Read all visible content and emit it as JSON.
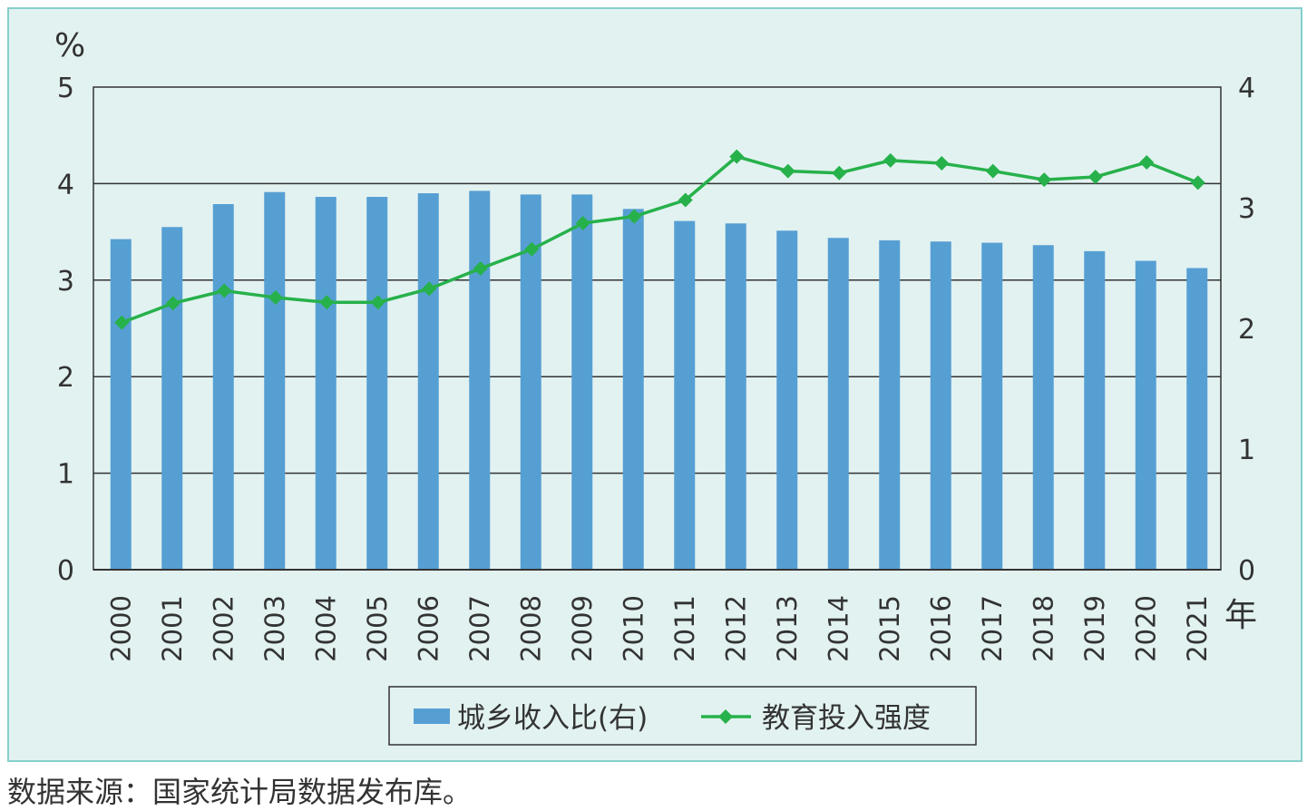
{
  "chart_data": {
    "type": "bar+line",
    "categories": [
      "2000",
      "2001",
      "2002",
      "2003",
      "2004",
      "2005",
      "2006",
      "2007",
      "2008",
      "2009",
      "2010",
      "2011",
      "2012",
      "2013",
      "2014",
      "2015",
      "2016",
      "2017",
      "2018",
      "2019",
      "2020",
      "2021"
    ],
    "series": [
      {
        "name": "城乡收入比(右)",
        "type": "bar",
        "axis": "right",
        "color": "#569fd3",
        "values": [
          2.74,
          2.84,
          3.03,
          3.13,
          3.09,
          3.09,
          3.12,
          3.14,
          3.11,
          3.11,
          2.99,
          2.89,
          2.87,
          2.81,
          2.75,
          2.73,
          2.72,
          2.71,
          2.69,
          2.64,
          2.56,
          2.5
        ]
      },
      {
        "name": "教育投入强度",
        "type": "line",
        "axis": "left",
        "color": "#27b14b",
        "values": [
          2.56,
          2.76,
          2.89,
          2.82,
          2.77,
          2.77,
          2.91,
          3.12,
          3.32,
          3.59,
          3.66,
          3.83,
          4.28,
          4.13,
          4.11,
          4.24,
          4.21,
          4.13,
          4.04,
          4.07,
          4.22,
          4.01
        ]
      }
    ],
    "y_left": {
      "unit": "%",
      "ticks": [
        "0",
        "1",
        "2",
        "3",
        "4",
        "5"
      ],
      "ylim": [
        0,
        5
      ]
    },
    "y_right": {
      "ticks": [
        "0",
        "1",
        "2",
        "3",
        "4"
      ],
      "ylim": [
        0,
        4
      ]
    },
    "x_unit": "年",
    "grid": true,
    "legend": "bottom-center"
  },
  "source_note": "数据来源：国家统计局数据发布库。"
}
